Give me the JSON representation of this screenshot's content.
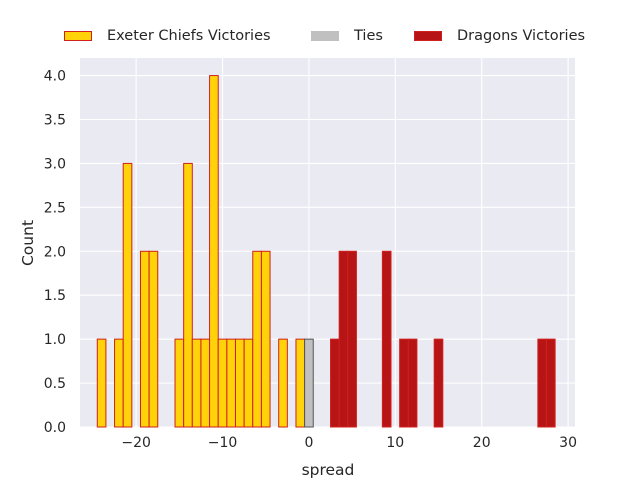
{
  "chart_data": {
    "type": "bar",
    "title": "",
    "xlabel": "spread",
    "ylabel": "Count",
    "xlim": [
      -26.5,
      30.8
    ],
    "ylim": [
      0,
      4.2
    ],
    "x_ticks": [
      -20,
      -10,
      0,
      10,
      20,
      30
    ],
    "x_tick_labels": [
      "−20",
      "−10",
      "0",
      "10",
      "20",
      "30"
    ],
    "y_ticks": [
      0,
      0.5,
      1.0,
      1.5,
      2.0,
      2.5,
      3.0,
      3.5,
      4.0
    ],
    "y_tick_labels": [
      "0.0",
      "0.5",
      "1.0",
      "1.5",
      "2.0",
      "2.5",
      "3.0",
      "3.5",
      "4.0"
    ],
    "grid": true,
    "legend_position": "top-center",
    "bin_width": 1,
    "series": [
      {
        "name": "Exeter Chiefs Victories",
        "color": "#FFD20A",
        "edge_color": "#D0201E",
        "bins": [
          {
            "spread": -24,
            "count": 1
          },
          {
            "spread": -22,
            "count": 1
          },
          {
            "spread": -21,
            "count": 3
          },
          {
            "spread": -19,
            "count": 2
          },
          {
            "spread": -18,
            "count": 2
          },
          {
            "spread": -15,
            "count": 1
          },
          {
            "spread": -14,
            "count": 3
          },
          {
            "spread": -13,
            "count": 1
          },
          {
            "spread": -12,
            "count": 1
          },
          {
            "spread": -11,
            "count": 4
          },
          {
            "spread": -10,
            "count": 1
          },
          {
            "spread": -9,
            "count": 1
          },
          {
            "spread": -8,
            "count": 1
          },
          {
            "spread": -7,
            "count": 1
          },
          {
            "spread": -6,
            "count": 2
          },
          {
            "spread": -5,
            "count": 2
          },
          {
            "spread": -3,
            "count": 1
          },
          {
            "spread": -1,
            "count": 1
          }
        ]
      },
      {
        "name": "Ties",
        "color": "#C0C0C0",
        "edge_color": "#555555",
        "bins": [
          {
            "spread": 0,
            "count": 1
          }
        ]
      },
      {
        "name": "Dragons Victories",
        "color": "#B71515",
        "edge_color": "#D0201E",
        "bins": [
          {
            "spread": 3,
            "count": 1
          },
          {
            "spread": 4,
            "count": 2
          },
          {
            "spread": 5,
            "count": 2
          },
          {
            "spread": 9,
            "count": 2
          },
          {
            "spread": 11,
            "count": 1
          },
          {
            "spread": 12,
            "count": 1
          },
          {
            "spread": 15,
            "count": 1
          },
          {
            "spread": 27,
            "count": 1
          },
          {
            "spread": 28,
            "count": 1
          }
        ]
      }
    ]
  }
}
